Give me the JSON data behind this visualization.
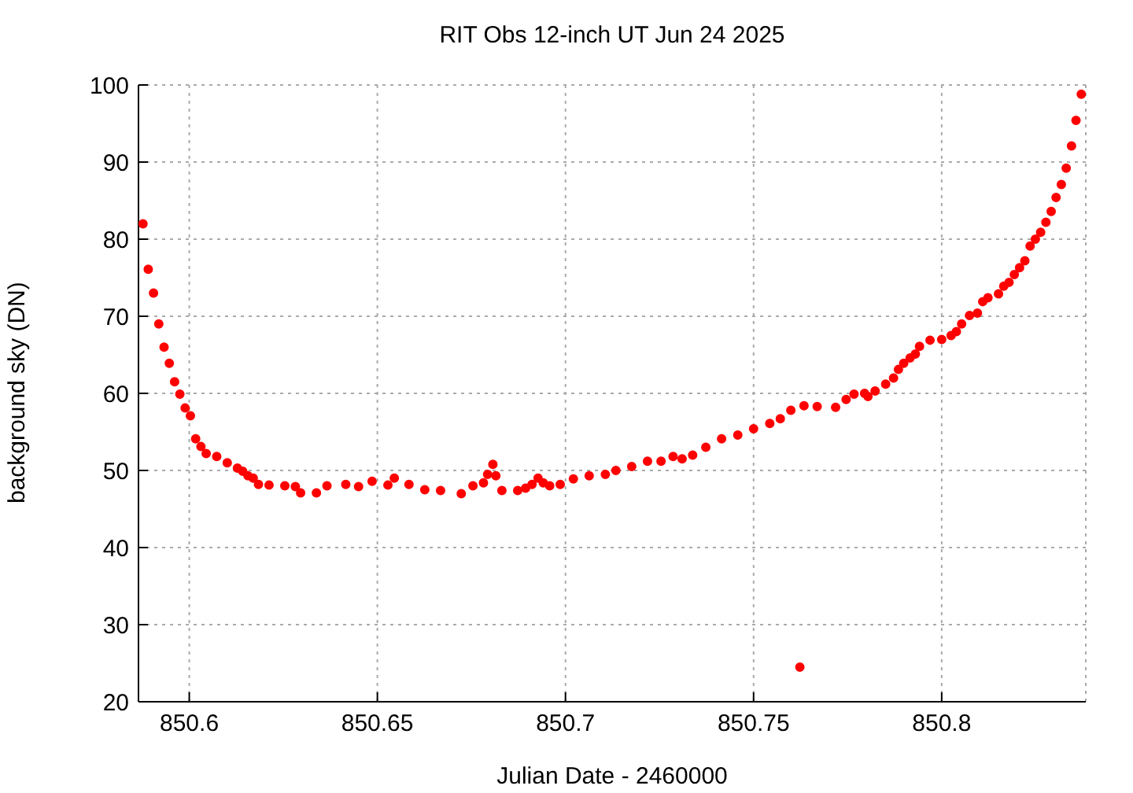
{
  "chart_data": {
    "type": "scatter",
    "title": "RIT Obs 12-inch UT Jun 24 2025",
    "xlabel": "Julian Date - 2460000",
    "ylabel": "background sky (DN)",
    "xlim": [
      850.5865,
      850.8383
    ],
    "xticks": [
      850.6,
      850.65,
      850.7,
      850.75,
      850.8
    ],
    "ylim": [
      20,
      100
    ],
    "yticks": [
      20,
      30,
      40,
      50,
      60,
      70,
      80,
      90,
      100
    ],
    "grid": true,
    "marker": "circle",
    "series": [
      {
        "color": "#ff0000",
        "x": [
          850.5877,
          850.5891,
          850.5905,
          850.5919,
          850.5933,
          850.5947,
          850.5961,
          850.5975,
          850.5989,
          850.6003,
          850.6017,
          850.6031,
          850.6045,
          850.6073,
          850.6101,
          850.6128,
          850.6142,
          850.6156,
          850.617,
          850.6184,
          850.6212,
          850.6254,
          850.6282,
          850.6296,
          850.6338,
          850.6366,
          850.6416,
          850.645,
          850.6486,
          850.6528,
          850.6545,
          850.6584,
          850.6626,
          850.6668,
          850.6723,
          850.6754,
          850.6782,
          850.6793,
          850.6807,
          850.6815,
          850.6831,
          850.6873,
          850.6894,
          850.6911,
          850.6927,
          850.6941,
          850.6958,
          850.6986,
          850.7021,
          850.7063,
          850.7106,
          850.7134,
          850.7176,
          850.7218,
          850.7254,
          850.7286,
          850.731,
          850.7338,
          850.7373,
          850.7415,
          850.7458,
          850.75,
          850.7543,
          850.7571,
          850.7599,
          850.7623,
          850.7634,
          850.7669,
          850.7718,
          850.7746,
          850.7767,
          850.7795,
          850.7804,
          850.7823,
          850.7851,
          850.7872,
          850.7885,
          850.7899,
          850.7916,
          850.793,
          850.7941,
          850.7969,
          850.8,
          850.8025,
          850.8039,
          850.8053,
          850.8074,
          850.8095,
          850.8109,
          850.8123,
          850.8151,
          850.8165,
          850.8179,
          850.8193,
          850.8207,
          850.8221,
          850.8235,
          850.8249,
          850.8263,
          850.8277,
          850.8291,
          850.8304,
          850.8318,
          850.8331,
          850.8345,
          850.8357,
          850.8371
        ],
        "values": [
          82.0,
          76.1,
          73.0,
          69.0,
          66.0,
          63.9,
          61.5,
          59.9,
          58.1,
          57.1,
          54.1,
          53.1,
          52.2,
          51.8,
          51.0,
          50.3,
          49.9,
          49.3,
          49.0,
          48.2,
          48.1,
          48.0,
          47.9,
          47.1,
          47.1,
          48.0,
          48.2,
          47.9,
          48.6,
          48.1,
          49.0,
          48.2,
          47.5,
          47.4,
          47.0,
          48.0,
          48.4,
          49.5,
          50.8,
          49.3,
          47.4,
          47.4,
          47.7,
          48.2,
          49.0,
          48.4,
          48.0,
          48.2,
          48.9,
          49.3,
          49.5,
          50.0,
          50.5,
          51.2,
          51.2,
          51.8,
          51.5,
          52.0,
          53.0,
          54.1,
          54.6,
          55.4,
          56.1,
          56.7,
          57.8,
          24.5,
          58.4,
          58.3,
          58.2,
          59.2,
          59.9,
          60.0,
          59.6,
          60.3,
          61.2,
          62.0,
          63.1,
          63.9,
          64.6,
          65.1,
          66.1,
          66.9,
          67.0,
          67.5,
          68.0,
          69.0,
          70.1,
          70.4,
          71.9,
          72.4,
          72.9,
          73.9,
          74.4,
          75.4,
          76.3,
          77.2,
          79.1,
          80.0,
          80.9,
          82.2,
          83.6,
          85.4,
          87.1,
          89.2,
          92.1,
          95.4,
          98.8
        ]
      }
    ]
  }
}
